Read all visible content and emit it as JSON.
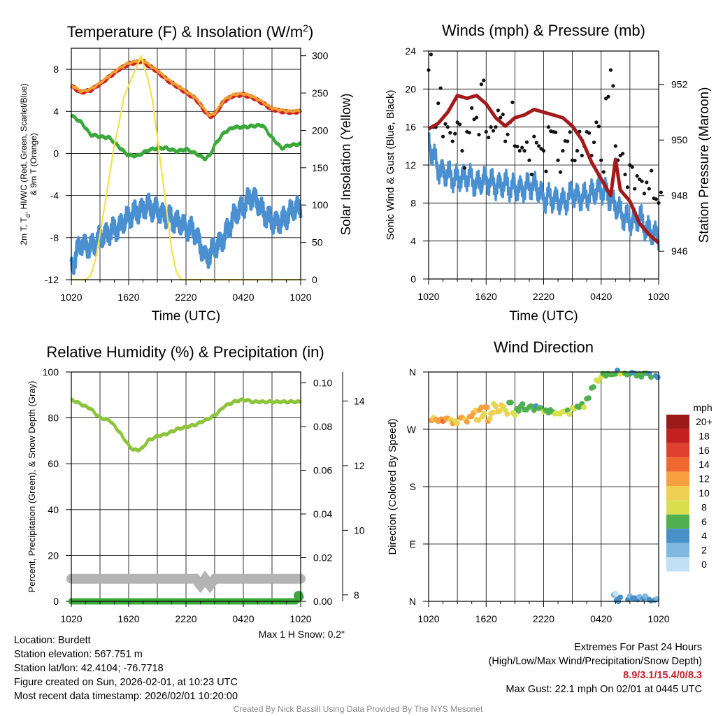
{
  "chart_data": [
    {
      "type": "line",
      "title": "Temperature (F) & Insolation (W/m²)",
      "xlabel": "Time (UTC)",
      "ylabel": "2m T, Td, HI/WC (Red, Green, Scarlet/Blue) & 9m T (Orange)",
      "ylabel_lines": [
        "2m T, T",
        "d",
        ", HI/WC (Red, Green, Scarlet/Blue)",
        "& 9m T (Orange)"
      ],
      "y2label": "Solar Insolation (Yellow)",
      "x_ticks": [
        "1020",
        "1620",
        "2220",
        "0420",
        "1020"
      ],
      "x_hours": [
        0,
        24
      ],
      "ylim": [
        -12,
        10
      ],
      "y_ticks": [
        -12,
        -8,
        -4,
        0,
        4,
        8
      ],
      "y2lim": [
        0,
        310
      ],
      "y2_ticks": [
        0,
        50,
        100,
        150,
        200,
        250,
        300
      ],
      "series": [
        {
          "name": "2m T",
          "color": "#cc2222",
          "axis": "left",
          "x": [
            0,
            1,
            2,
            3,
            4,
            5,
            6,
            7,
            7.5,
            8,
            9,
            10,
            11,
            12,
            13,
            14,
            14.5,
            15,
            16,
            17,
            18,
            19,
            20,
            21,
            22,
            23,
            24
          ],
          "y": [
            6.4,
            5.8,
            6.0,
            6.6,
            7.3,
            8.0,
            8.5,
            8.7,
            8.8,
            8.4,
            7.8,
            7.0,
            6.4,
            5.8,
            5.2,
            4.0,
            3.5,
            3.7,
            5.0,
            5.5,
            5.6,
            5.3,
            4.8,
            4.2,
            4.0,
            3.9,
            4.0
          ]
        },
        {
          "name": "9m T",
          "color": "#f0a030",
          "axis": "left",
          "x": [
            0,
            1,
            2,
            3,
            4,
            5,
            6,
            7,
            7.5,
            8,
            9,
            10,
            11,
            12,
            13,
            14,
            14.5,
            15,
            16,
            17,
            18,
            19,
            20,
            21,
            22,
            23,
            24
          ],
          "y": [
            6.5,
            5.9,
            6.1,
            6.7,
            7.4,
            8.1,
            8.6,
            8.8,
            8.9,
            8.5,
            7.9,
            7.1,
            6.5,
            5.9,
            5.3,
            4.1,
            3.6,
            3.8,
            5.1,
            5.6,
            5.7,
            5.4,
            4.9,
            4.3,
            4.1,
            4.0,
            4.1
          ]
        },
        {
          "name": "Td",
          "color": "#3aa83a",
          "axis": "left",
          "x": [
            0,
            1,
            2,
            3,
            4,
            5,
            6,
            7,
            8,
            9,
            10,
            11,
            12,
            13,
            14,
            14.5,
            15,
            16,
            17,
            18,
            19,
            20,
            21,
            22,
            23,
            24
          ],
          "y": [
            3.6,
            3.0,
            1.8,
            1.6,
            1.5,
            0.6,
            -0.2,
            -0.2,
            0.3,
            0.5,
            0.5,
            0.2,
            0.4,
            0.0,
            -0.5,
            -0.2,
            0.8,
            2.0,
            2.5,
            2.5,
            2.6,
            2.7,
            1.5,
            0.5,
            0.8,
            0.9
          ]
        },
        {
          "name": "HI/WC",
          "color": "#4a90d0",
          "axis": "left",
          "x": [
            0,
            1,
            2,
            3,
            4,
            5,
            6,
            7,
            8,
            9,
            10,
            11,
            12,
            13,
            14,
            15,
            16,
            17,
            18,
            19,
            20,
            21,
            22,
            23,
            24
          ],
          "y": [
            -10.8,
            -8.5,
            -9.0,
            -8.0,
            -7.5,
            -7.0,
            -6.0,
            -5.5,
            -5.0,
            -5.5,
            -6.0,
            -6.5,
            -7.0,
            -7.5,
            -10.0,
            -9.0,
            -8.0,
            -6.0,
            -5.0,
            -4.0,
            -5.5,
            -6.5,
            -6.5,
            -5.5,
            -5.0
          ]
        },
        {
          "name": "Solar Insolation",
          "color": "#f7e04a",
          "axis": "right",
          "x": [
            0,
            1.5,
            2,
            2.5,
            3,
            3.5,
            4,
            4.5,
            5,
            5.5,
            6,
            6.5,
            7,
            7.3,
            7.6,
            8,
            8.5,
            9,
            9.5,
            10,
            10.5,
            11,
            11.5,
            12,
            24
          ],
          "y": [
            0,
            0,
            5,
            25,
            60,
            100,
            140,
            180,
            210,
            245,
            260,
            275,
            290,
            300,
            285,
            270,
            240,
            190,
            140,
            90,
            40,
            10,
            0,
            0,
            0
          ]
        }
      ]
    },
    {
      "type": "line",
      "title": "Winds (mph) & Pressure (mb)",
      "xlabel": "Time (UTC)",
      "ylabel": "Sonic Wind & Gust (Blue, Black)",
      "y2label": "Station Pressure (Maroon)",
      "x_ticks": [
        "1020",
        "1620",
        "2220",
        "0420",
        "1020"
      ],
      "x_hours": [
        0,
        24
      ],
      "ylim": [
        0,
        24
      ],
      "y_ticks": [
        0,
        4,
        8,
        12,
        16,
        20,
        24
      ],
      "y2lim": [
        945,
        953.2
      ],
      "y2_ticks": [
        946,
        948,
        950,
        952
      ],
      "series": [
        {
          "name": "Sonic Wind",
          "color": "#4a90d0",
          "axis": "left",
          "x": [
            0,
            1,
            2,
            3,
            4,
            5,
            6,
            7,
            8,
            9,
            10,
            11,
            12,
            13,
            14,
            15,
            16,
            17,
            18,
            19,
            20,
            21,
            22,
            23,
            24
          ],
          "y": [
            14.5,
            11.5,
            11.0,
            10.5,
            10.8,
            10.0,
            10.5,
            9.8,
            10.0,
            9.5,
            9.5,
            10.0,
            8.5,
            8.5,
            8.0,
            9.0,
            8.5,
            9.0,
            9.5,
            8.5,
            7.0,
            6.0,
            6.5,
            5.0,
            4.5
          ]
        },
        {
          "name": "Gust",
          "color": "#111111",
          "axis": "left",
          "style": "dots",
          "x": [
            0,
            0.5,
            1,
            1.5,
            2,
            2.5,
            3,
            3.5,
            4,
            4.5,
            5,
            5.5,
            6,
            6.5,
            7,
            7.5,
            8,
            8.5,
            9,
            9.5,
            10,
            10.5,
            11,
            11.5,
            12,
            12.5,
            13,
            13.5,
            14,
            14.5,
            15,
            15.5,
            16,
            16.5,
            17,
            17.5,
            18,
            18.5,
            19,
            19.5,
            20,
            20.5,
            21,
            21.5,
            22,
            22.5,
            23,
            23.5,
            24
          ],
          "y": [
            22.0,
            16.0,
            18.5,
            15.0,
            16.0,
            14.5,
            16.5,
            13.5,
            15.5,
            18.0,
            17.0,
            20.5,
            15.5,
            16.0,
            16.0,
            17.0,
            14.5,
            16.5,
            14.0,
            13.5,
            13.5,
            12.5,
            15.0,
            14.0,
            13.5,
            16.0,
            15.5,
            12.5,
            13.5,
            14.5,
            12.5,
            13.5,
            13.0,
            15.5,
            13.0,
            16.5,
            12.5,
            19.0,
            22.0,
            14.0,
            13.0,
            11.0,
            12.0,
            9.5,
            10.5,
            9.0,
            9.5,
            8.5,
            8.0
          ]
        },
        {
          "name": "Station Pressure",
          "color": "#a31a1a",
          "axis": "right",
          "x": [
            0,
            1,
            2,
            3,
            4,
            5,
            6,
            7,
            8,
            9,
            10,
            11,
            12,
            13,
            14,
            15,
            16,
            17,
            18,
            19,
            19.5,
            20,
            21,
            22,
            23,
            24
          ],
          "y": [
            950.4,
            950.6,
            951.0,
            951.6,
            951.5,
            951.6,
            951.3,
            950.8,
            950.5,
            950.8,
            950.9,
            951.1,
            951.0,
            950.9,
            950.8,
            950.5,
            950.0,
            949.2,
            948.6,
            948.0,
            949.3,
            948.2,
            947.8,
            947.0,
            946.6,
            946.3
          ]
        }
      ]
    },
    {
      "type": "line",
      "title": "Relative Humidity (%) & Precipitation (in)",
      "ylabel": "Percent, Precipitation (Green), & Snow Depth (Gray)",
      "x_ticks": [
        "1020",
        "1620",
        "2220",
        "0420",
        "1020"
      ],
      "x_hours": [
        0,
        24
      ],
      "ylim": [
        0,
        100
      ],
      "y_ticks": [
        0,
        20,
        40,
        60,
        80,
        100
      ],
      "y2lim": [
        0,
        0.105
      ],
      "y2_ticks": [
        "0.00",
        "0.02",
        "0.04",
        "0.06",
        "0.08",
        "0.10"
      ],
      "y3lim": [
        7.8,
        14.9
      ],
      "y3_ticks": [
        8,
        10,
        12,
        14
      ],
      "series": [
        {
          "name": "Relative Humidity",
          "color": "#8cc43c",
          "axis": "left",
          "x": [
            0,
            1,
            2,
            3,
            4,
            5,
            6,
            6.5,
            7,
            7.5,
            8,
            9,
            10,
            11,
            12,
            13,
            14,
            15,
            16,
            17,
            18,
            19,
            20,
            21,
            22,
            23,
            24
          ],
          "y": [
            88,
            86,
            84,
            80,
            79,
            74,
            68,
            66,
            66,
            67,
            70,
            72,
            73,
            75,
            76,
            77,
            79,
            81,
            85,
            87,
            88,
            87,
            87,
            87,
            87,
            87,
            87
          ]
        },
        {
          "name": "Snow Depth",
          "color": "#b4b4b4",
          "axis": "y3",
          "x": [
            0,
            13,
            13.5,
            14,
            14.5,
            15,
            24
          ],
          "y": [
            8.5,
            8.5,
            8.3,
            8.5,
            8.3,
            8.5,
            8.5
          ]
        },
        {
          "name": "Precipitation",
          "color": "#3aa83a",
          "axis": "right",
          "x": [
            0,
            23.5,
            24
          ],
          "y": [
            0.0,
            0.0,
            0.002
          ]
        }
      ],
      "note": "Max 1 H Snow: 0.2\""
    },
    {
      "type": "scatter",
      "title": "Wind Direction",
      "ylabel": "Direction (Colored By Speed)",
      "x_ticks": [
        "1020",
        "1620",
        "2220",
        "0420",
        "1020"
      ],
      "x_hours": [
        0,
        24
      ],
      "ylim": [
        0,
        360
      ],
      "y_ticks": [
        "N",
        "E",
        "S",
        "W",
        "N"
      ],
      "legend": {
        "title": "mph",
        "labels": [
          "20+",
          "18",
          "16",
          "14",
          "12",
          "10",
          "8",
          "6",
          "4",
          "2",
          "0"
        ],
        "colors": [
          "#9a1a1a",
          "#c42020",
          "#e04030",
          "#f06830",
          "#f8a040",
          "#f0d050",
          "#d8e050",
          "#50b050",
          "#4a90c8",
          "#80b8e0",
          "#c0e0f5"
        ]
      },
      "points": [
        {
          "x": 0.3,
          "dir": 284,
          "speed": 12
        },
        {
          "x": 0.8,
          "dir": 285,
          "speed": 12
        },
        {
          "x": 1.3,
          "dir": 286,
          "speed": 13
        },
        {
          "x": 1.8,
          "dir": 287,
          "speed": 12
        },
        {
          "x": 2.3,
          "dir": 285,
          "speed": 11
        },
        {
          "x": 2.8,
          "dir": 283,
          "speed": 9
        },
        {
          "x": 3.3,
          "dir": 288,
          "speed": 12
        },
        {
          "x": 3.8,
          "dir": 286,
          "speed": 11
        },
        {
          "x": 4.3,
          "dir": 290,
          "speed": 13
        },
        {
          "x": 4.7,
          "dir": 296,
          "speed": 12
        },
        {
          "x": 5.0,
          "dir": 285,
          "speed": 11
        },
        {
          "x": 5.3,
          "dir": 300,
          "speed": 13
        },
        {
          "x": 5.6,
          "dir": 290,
          "speed": 10
        },
        {
          "x": 5.9,
          "dir": 305,
          "speed": 12
        },
        {
          "x": 6.2,
          "dir": 283,
          "speed": 12
        },
        {
          "x": 6.5,
          "dir": 295,
          "speed": 10
        },
        {
          "x": 6.8,
          "dir": 310,
          "speed": 9
        },
        {
          "x": 7.2,
          "dir": 298,
          "speed": 11
        },
        {
          "x": 7.6,
          "dir": 308,
          "speed": 10
        },
        {
          "x": 8.0,
          "dir": 300,
          "speed": 9
        },
        {
          "x": 8.4,
          "dir": 312,
          "speed": 7
        },
        {
          "x": 8.8,
          "dir": 296,
          "speed": 8
        },
        {
          "x": 9.2,
          "dir": 302,
          "speed": 6
        },
        {
          "x": 9.6,
          "dir": 306,
          "speed": 7
        },
        {
          "x": 10.0,
          "dir": 301,
          "speed": 6
        },
        {
          "x": 10.5,
          "dir": 305,
          "speed": 6
        },
        {
          "x": 11.0,
          "dir": 300,
          "speed": 7
        },
        {
          "x": 11.5,
          "dir": 303,
          "speed": 6
        },
        {
          "x": 12.0,
          "dir": 298,
          "speed": 8
        },
        {
          "x": 12.5,
          "dir": 296,
          "speed": 7
        },
        {
          "x": 13.0,
          "dir": 297,
          "speed": 7
        },
        {
          "x": 13.5,
          "dir": 295,
          "speed": 8
        },
        {
          "x": 14.0,
          "dir": 298,
          "speed": 8
        },
        {
          "x": 14.5,
          "dir": 300,
          "speed": 7
        },
        {
          "x": 15.0,
          "dir": 304,
          "speed": 8
        },
        {
          "x": 15.5,
          "dir": 306,
          "speed": 7
        },
        {
          "x": 16.0,
          "dir": 310,
          "speed": 6
        },
        {
          "x": 16.5,
          "dir": 318,
          "speed": 7
        },
        {
          "x": 17.0,
          "dir": 335,
          "speed": 7
        },
        {
          "x": 17.5,
          "dir": 347,
          "speed": 8
        },
        {
          "x": 18.0,
          "dir": 352,
          "speed": 9
        },
        {
          "x": 18.5,
          "dir": 354,
          "speed": 7
        },
        {
          "x": 19.0,
          "dir": 356,
          "speed": 6
        },
        {
          "x": 19.5,
          "dir": 357,
          "speed": 7
        },
        {
          "x": 20.0,
          "dir": 357,
          "speed": 8
        },
        {
          "x": 20.5,
          "dir": 358,
          "speed": 6
        },
        {
          "x": 21.0,
          "dir": 357,
          "speed": 6
        },
        {
          "x": 21.5,
          "dir": 358,
          "speed": 5
        },
        {
          "x": 22.0,
          "dir": 357,
          "speed": 6
        },
        {
          "x": 22.5,
          "dir": 358,
          "speed": 6
        },
        {
          "x": 23.0,
          "dir": 357,
          "speed": 5
        },
        {
          "x": 23.7,
          "dir": 354,
          "speed": 4
        },
        {
          "x": 19.3,
          "dir": 10,
          "speed": 2
        },
        {
          "x": 19.6,
          "dir": 2,
          "speed": 4
        },
        {
          "x": 19.8,
          "dir": 4,
          "speed": 5
        },
        {
          "x": 20.8,
          "dir": 3,
          "speed": 4
        },
        {
          "x": 21.3,
          "dir": 5,
          "speed": 4
        },
        {
          "x": 21.8,
          "dir": 3,
          "speed": 4
        },
        {
          "x": 22.4,
          "dir": 4,
          "speed": 4
        },
        {
          "x": 23.0,
          "dir": 3,
          "speed": 4
        },
        {
          "x": 23.6,
          "dir": 2,
          "speed": 4
        }
      ]
    }
  ],
  "station": {
    "location": "Location: Burdett",
    "elevation": "Station elevation: 567.751 m",
    "latlon": "Station lat/lon: 42.4104; -76.7718",
    "created": "Figure created on Sun, 2026-02-01, at 10:23 UTC",
    "recent": "Most recent data timestamp: 2026/02/01 10:20:00"
  },
  "extremes": {
    "title": "Extremes For Past 24 Hours",
    "subtitle": "(High/Low/Max Wind/Precipitation/Snow Depth)",
    "values": "8.9/3.1/15.4/0/8.3",
    "gust": "Max Gust: 22.1 mph On 02/01 at 0445 UTC"
  },
  "credit": "Created By Nick Bassill Using Data Provided By The NYS Mesonet"
}
